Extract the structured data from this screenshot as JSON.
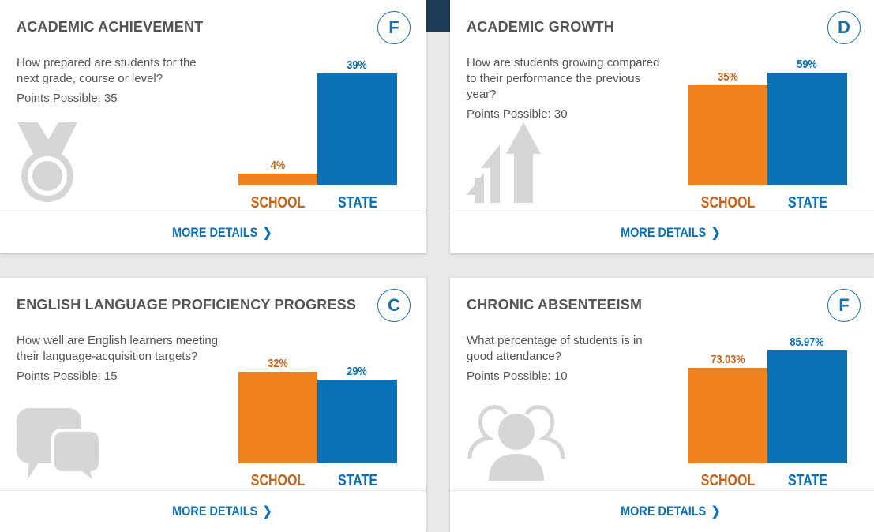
{
  "cards": [
    {
      "title": "ACADEMIC ACHIEVEMENT",
      "grade": "F",
      "question": "How prepared are students for the next grade, course or level?",
      "points": "Points Possible: 35",
      "icon": "medal-icon",
      "more": "MORE DETAILS"
    },
    {
      "title": "ACADEMIC GROWTH",
      "grade": "D",
      "question": "How are students growing compared to their performance the previous year?",
      "points": "Points Possible: 30",
      "icon": "growth-arrows-icon",
      "more": "MORE DETAILS"
    },
    {
      "title": "ENGLISH LANGUAGE PROFICIENCY PROGRESS",
      "grade": "C",
      "question": "How well are English learners meeting their language-acquisition targets?",
      "points": "Points Possible: 15",
      "icon": "speech-bubbles-icon",
      "more": "MORE DETAILS"
    },
    {
      "title": "CHRONIC ABSENTEEISM",
      "grade": "F",
      "question": "What percentage of students is in good attendance?",
      "points": "Points Possible: 10",
      "icon": "people-icon",
      "more": "MORE DETAILS"
    }
  ],
  "chart_data": [
    {
      "type": "bar",
      "categories": [
        "SCHOOL",
        "STATE"
      ],
      "values": [
        4,
        39
      ],
      "labels": [
        "4%",
        "39%"
      ],
      "colors": [
        "#f0821e",
        "#0b71b4"
      ]
    },
    {
      "type": "bar",
      "categories": [
        "SCHOOL",
        "STATE"
      ],
      "values": [
        35,
        59
      ],
      "labels": [
        "35%",
        "59%"
      ],
      "colors": [
        "#f0821e",
        "#0b71b4"
      ]
    },
    {
      "type": "bar",
      "categories": [
        "SCHOOL",
        "STATE"
      ],
      "values": [
        32,
        29
      ],
      "labels": [
        "32%",
        "29%"
      ],
      "colors": [
        "#f0821e",
        "#0b71b4"
      ]
    },
    {
      "type": "bar",
      "categories": [
        "SCHOOL",
        "STATE"
      ],
      "values": [
        73.03,
        85.97
      ],
      "labels": [
        "73.03%",
        "85.97%"
      ],
      "colors": [
        "#f0821e",
        "#0b71b4"
      ]
    }
  ]
}
